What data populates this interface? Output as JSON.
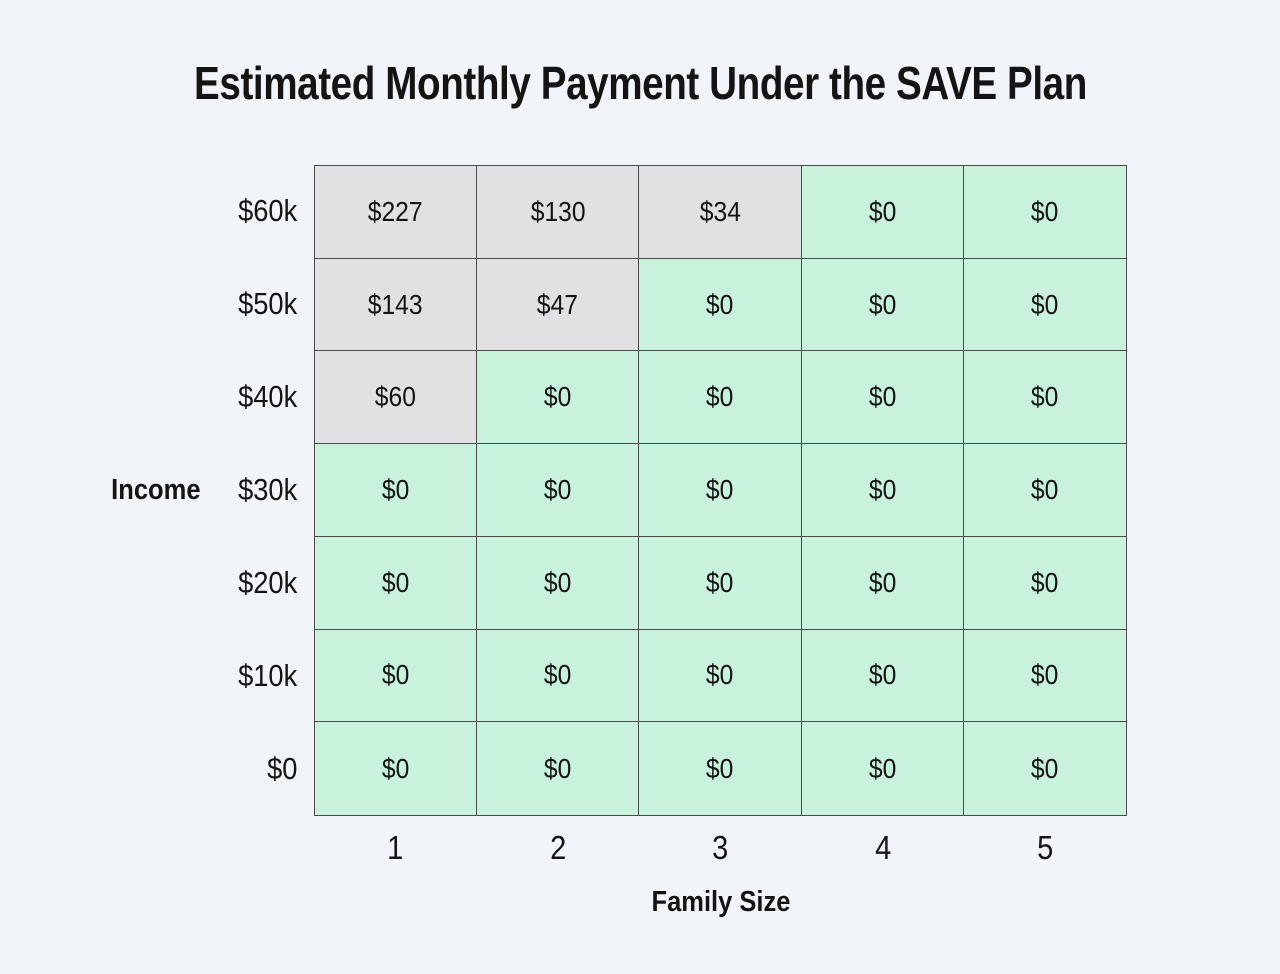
{
  "chart_data": {
    "type": "heatmap",
    "title": "Estimated Monthly Payment Under the SAVE Plan",
    "xlabel": "Family Size",
    "ylabel": "Income",
    "x_categories": [
      "1",
      "2",
      "3",
      "4",
      "5"
    ],
    "y_categories": [
      "$60k",
      "$50k",
      "$40k",
      "$30k",
      "$20k",
      "$10k",
      "$0"
    ],
    "values_monthly_payment_usd": [
      [
        227,
        130,
        34,
        0,
        0
      ],
      [
        143,
        47,
        0,
        0,
        0
      ],
      [
        60,
        0,
        0,
        0,
        0
      ],
      [
        0,
        0,
        0,
        0,
        0
      ],
      [
        0,
        0,
        0,
        0,
        0
      ],
      [
        0,
        0,
        0,
        0,
        0
      ],
      [
        0,
        0,
        0,
        0,
        0
      ]
    ],
    "legend": "none",
    "grid": "on",
    "colors": {
      "background": "#f1f5f9",
      "zero_cell": "#c8f2dc",
      "nonzero_cell": "#e1e1e3",
      "border": "#4a4a4a",
      "text": "#141414"
    },
    "rows": [
      {
        "label": "$60k",
        "cells": [
          {
            "text": "$227",
            "state": "nonzero"
          },
          {
            "text": "$130",
            "state": "nonzero"
          },
          {
            "text": "$34",
            "state": "nonzero"
          },
          {
            "text": "$0",
            "state": "zero"
          },
          {
            "text": "$0",
            "state": "zero"
          }
        ]
      },
      {
        "label": "$50k",
        "cells": [
          {
            "text": "$143",
            "state": "nonzero"
          },
          {
            "text": "$47",
            "state": "nonzero"
          },
          {
            "text": "$0",
            "state": "zero"
          },
          {
            "text": "$0",
            "state": "zero"
          },
          {
            "text": "$0",
            "state": "zero"
          }
        ]
      },
      {
        "label": "$40k",
        "cells": [
          {
            "text": "$60",
            "state": "nonzero"
          },
          {
            "text": "$0",
            "state": "zero"
          },
          {
            "text": "$0",
            "state": "zero"
          },
          {
            "text": "$0",
            "state": "zero"
          },
          {
            "text": "$0",
            "state": "zero"
          }
        ]
      },
      {
        "label": "$30k",
        "cells": [
          {
            "text": "$0",
            "state": "zero"
          },
          {
            "text": "$0",
            "state": "zero"
          },
          {
            "text": "$0",
            "state": "zero"
          },
          {
            "text": "$0",
            "state": "zero"
          },
          {
            "text": "$0",
            "state": "zero"
          }
        ]
      },
      {
        "label": "$20k",
        "cells": [
          {
            "text": "$0",
            "state": "zero"
          },
          {
            "text": "$0",
            "state": "zero"
          },
          {
            "text": "$0",
            "state": "zero"
          },
          {
            "text": "$0",
            "state": "zero"
          },
          {
            "text": "$0",
            "state": "zero"
          }
        ]
      },
      {
        "label": "$10k",
        "cells": [
          {
            "text": "$0",
            "state": "zero"
          },
          {
            "text": "$0",
            "state": "zero"
          },
          {
            "text": "$0",
            "state": "zero"
          },
          {
            "text": "$0",
            "state": "zero"
          },
          {
            "text": "$0",
            "state": "zero"
          }
        ]
      },
      {
        "label": "$0",
        "cells": [
          {
            "text": "$0",
            "state": "zero"
          },
          {
            "text": "$0",
            "state": "zero"
          },
          {
            "text": "$0",
            "state": "zero"
          },
          {
            "text": "$0",
            "state": "zero"
          },
          {
            "text": "$0",
            "state": "zero"
          }
        ]
      }
    ]
  }
}
